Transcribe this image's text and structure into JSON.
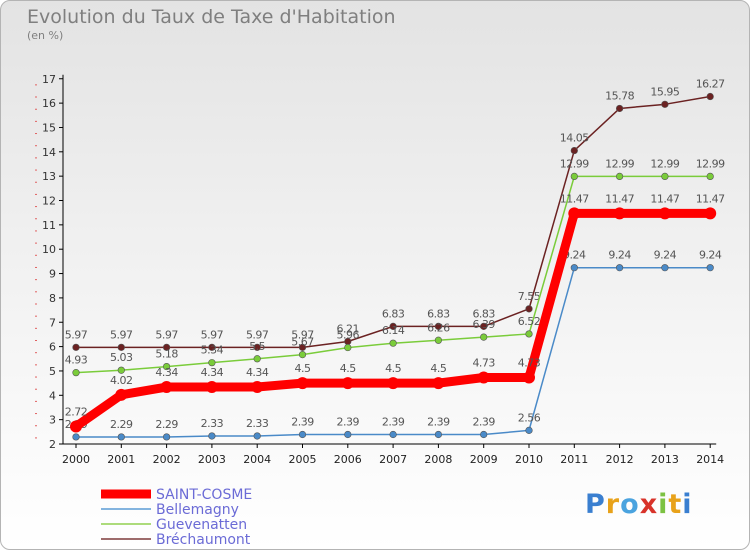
{
  "title": "Evolution du Taux de Taxe d'Habitation",
  "unit": "(en %)",
  "logo": "Proxiti",
  "colors": {
    "saint_cosme": "#ff0000",
    "bellemagny": "#5b9bd5",
    "guevenatten": "#92d050",
    "brechaumont": "#7f3b3b"
  },
  "chart_data": {
    "type": "line",
    "title": "Evolution du Taux de Taxe d'Habitation",
    "ylabel": "(en %)",
    "ylim": [
      2,
      17
    ],
    "grid": false,
    "legend": "bottom-left",
    "x": [
      "2000",
      "2001",
      "2002",
      "2003",
      "2004",
      "2005",
      "2006",
      "2007",
      "2008",
      "2009",
      "2010",
      "2011",
      "2012",
      "2013",
      "2014"
    ],
    "yticks": [
      "2",
      "3",
      "4",
      "5",
      "6",
      "7",
      "8",
      "9",
      "10",
      "11",
      "12",
      "13",
      "14",
      "15",
      "16",
      "17"
    ],
    "series": [
      {
        "name": "Bréchaumont",
        "color": "#6b2222",
        "values": [
          5.97,
          5.97,
          5.97,
          5.97,
          5.97,
          5.97,
          6.21,
          6.83,
          6.83,
          6.83,
          7.55,
          14.05,
          15.78,
          15.95,
          16.27
        ],
        "labels": [
          "5.97",
          "5.97",
          "5.97",
          "5.97",
          "5.97",
          "5.97",
          "6.21",
          "6.83",
          "6.83",
          "6.83",
          "7.55",
          "14.05",
          "15.78",
          "15.95",
          "16.27"
        ]
      },
      {
        "name": "Guevenatten",
        "color": "#7acc3a",
        "values": [
          4.93,
          5.03,
          5.18,
          5.34,
          5.5,
          5.67,
          5.96,
          6.14,
          6.26,
          6.39,
          6.52,
          12.99,
          12.99,
          12.99,
          12.99
        ],
        "labels": [
          "4.93",
          "5.03",
          "5.18",
          "5.34",
          "5.5",
          "5.67",
          "5.96",
          "6.14",
          "6.26",
          "6.39",
          "6.52",
          "12.99",
          "12.99",
          "12.99",
          "12.99"
        ]
      },
      {
        "name": "Bellemagny",
        "color": "#4a8ac8",
        "values": [
          2.29,
          2.29,
          2.29,
          2.33,
          2.33,
          2.39,
          2.39,
          2.39,
          2.39,
          2.39,
          2.56,
          9.24,
          9.24,
          9.24,
          9.24
        ],
        "labels": [
          "2.29",
          "2.29",
          "2.29",
          "2.33",
          "2.33",
          "2.39",
          "2.39",
          "2.39",
          "2.39",
          "2.39",
          "2.56",
          "9.24",
          "9.24",
          "9.24",
          "9.24"
        ]
      },
      {
        "name": "SAINT-COSME",
        "color": "#ff0000",
        "values": [
          2.72,
          4.02,
          4.34,
          4.34,
          4.34,
          4.5,
          4.5,
          4.5,
          4.5,
          4.73,
          4.73,
          11.47,
          11.47,
          11.47,
          11.47
        ],
        "labels": [
          "2.72",
          "4.02",
          "4.34",
          "4.34",
          "4.34",
          "4.5",
          "4.5",
          "4.5",
          "4.5",
          "4.73",
          "4.73",
          "11.47",
          "11.47",
          "11.47",
          "11.47"
        ]
      }
    ],
    "legend_entries": [
      {
        "name": "SAINT-COSME",
        "color": "#ff0000"
      },
      {
        "name": "Bellemagny",
        "color": "#5b9bd5"
      },
      {
        "name": "Guevenatten",
        "color": "#92d050"
      },
      {
        "name": "Bréchaumont",
        "color": "#7f3b3b"
      }
    ]
  }
}
